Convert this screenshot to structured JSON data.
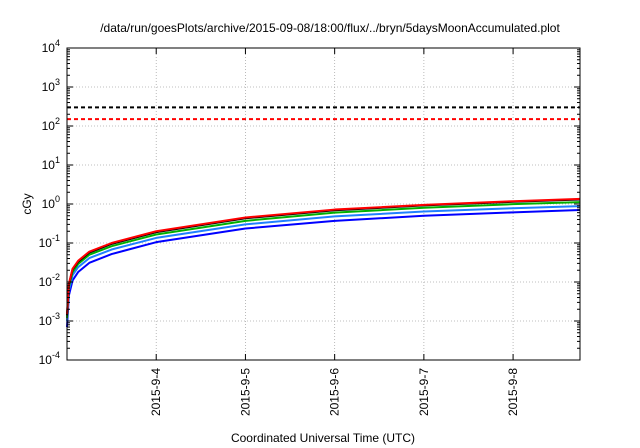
{
  "chart_data": {
    "type": "line",
    "title": "/data/run/goesPlots/archive/2015-09-08/18:00/flux/../bryn/5daysMoonAccumulated.plot",
    "xlabel": "Coordinated Universal Time (UTC)",
    "ylabel": "cGy",
    "x_scale": "time",
    "y_scale": "log",
    "xlim": [
      "2015-09-03 00:00",
      "2015-09-08 18:00"
    ],
    "ylim": [
      0.0001,
      10000
    ],
    "x_ticks": [
      "2015-9-4",
      "2015-9-5",
      "2015-9-6",
      "2015-9-7",
      "2015-9-8"
    ],
    "x_tick_values": [
      "2015-09-04",
      "2015-09-05",
      "2015-09-06",
      "2015-09-07",
      "2015-09-08"
    ],
    "y_ticks": [
      {
        "value": 0.0001,
        "base": "10",
        "exp": "-4"
      },
      {
        "value": 0.001,
        "base": "10",
        "exp": "-3"
      },
      {
        "value": 0.01,
        "base": "10",
        "exp": "-2"
      },
      {
        "value": 0.1,
        "base": "10",
        "exp": "-1"
      },
      {
        "value": 1,
        "base": "10",
        "exp": "0"
      },
      {
        "value": 10,
        "base": "10",
        "exp": "1"
      },
      {
        "value": 100,
        "base": "10",
        "exp": "2"
      },
      {
        "value": 1000,
        "base": "10",
        "exp": "3"
      },
      {
        "value": 10000,
        "base": "10",
        "exp": "4"
      }
    ],
    "grid": true,
    "legend": "none",
    "reference_lines": [
      {
        "y": 300,
        "color": "#000000",
        "style": "dashed"
      },
      {
        "y": 150,
        "color": "#ff0000",
        "style": "dashed"
      }
    ],
    "series": [
      {
        "color": "#ff0000",
        "points": [
          [
            "2015-09-03 00:00",
            0.0015
          ],
          [
            "2015-09-03 00:30",
            0.009
          ],
          [
            "2015-09-03 01:30",
            0.022
          ],
          [
            "2015-09-03 03:00",
            0.035
          ],
          [
            "2015-09-03 06:00",
            0.06
          ],
          [
            "2015-09-03 12:00",
            0.1
          ],
          [
            "2015-09-04 00:00",
            0.2
          ],
          [
            "2015-09-05 00:00",
            0.45
          ],
          [
            "2015-09-06 00:00",
            0.72
          ],
          [
            "2015-09-07 00:00",
            0.95
          ],
          [
            "2015-09-08 00:00",
            1.18
          ],
          [
            "2015-09-08 18:00",
            1.35
          ]
        ]
      },
      {
        "color": "#000000",
        "points": [
          [
            "2015-09-03 00:00",
            0.0014
          ],
          [
            "2015-09-03 00:30",
            0.0085
          ],
          [
            "2015-09-03 01:30",
            0.021
          ],
          [
            "2015-09-03 03:00",
            0.033
          ],
          [
            "2015-09-03 06:00",
            0.057
          ],
          [
            "2015-09-03 12:00",
            0.095
          ],
          [
            "2015-09-04 00:00",
            0.19
          ],
          [
            "2015-09-05 00:00",
            0.43
          ],
          [
            "2015-09-06 00:00",
            0.69
          ],
          [
            "2015-09-07 00:00",
            0.92
          ],
          [
            "2015-09-08 00:00",
            1.14
          ],
          [
            "2015-09-08 18:00",
            1.3
          ]
        ]
      },
      {
        "color": "#00b000",
        "points": [
          [
            "2015-09-03 00:00",
            0.0012
          ],
          [
            "2015-09-03 00:30",
            0.0075
          ],
          [
            "2015-09-03 01:30",
            0.018
          ],
          [
            "2015-09-03 03:00",
            0.029
          ],
          [
            "2015-09-03 06:00",
            0.05
          ],
          [
            "2015-09-03 12:00",
            0.083
          ],
          [
            "2015-09-04 00:00",
            0.165
          ],
          [
            "2015-09-05 00:00",
            0.37
          ],
          [
            "2015-09-06 00:00",
            0.6
          ],
          [
            "2015-09-07 00:00",
            0.8
          ],
          [
            "2015-09-08 00:00",
            0.99
          ],
          [
            "2015-09-08 18:00",
            1.12
          ]
        ]
      },
      {
        "color": "#2080ff",
        "points": [
          [
            "2015-09-03 00:00",
            0.001
          ],
          [
            "2015-09-03 00:30",
            0.006
          ],
          [
            "2015-09-03 01:30",
            0.015
          ],
          [
            "2015-09-03 03:00",
            0.024
          ],
          [
            "2015-09-03 06:00",
            0.041
          ],
          [
            "2015-09-03 12:00",
            0.068
          ],
          [
            "2015-09-04 00:00",
            0.135
          ],
          [
            "2015-09-05 00:00",
            0.3
          ],
          [
            "2015-09-06 00:00",
            0.48
          ],
          [
            "2015-09-07 00:00",
            0.64
          ],
          [
            "2015-09-08 00:00",
            0.78
          ],
          [
            "2015-09-08 18:00",
            0.88
          ]
        ]
      },
      {
        "color": "#0000ff",
        "points": [
          [
            "2015-09-03 00:00",
            0.0007
          ],
          [
            "2015-09-03 00:30",
            0.0045
          ],
          [
            "2015-09-03 01:30",
            0.011
          ],
          [
            "2015-09-03 03:00",
            0.018
          ],
          [
            "2015-09-03 06:00",
            0.031
          ],
          [
            "2015-09-03 12:00",
            0.052
          ],
          [
            "2015-09-04 00:00",
            0.105
          ],
          [
            "2015-09-05 00:00",
            0.235
          ],
          [
            "2015-09-06 00:00",
            0.37
          ],
          [
            "2015-09-07 00:00",
            0.5
          ],
          [
            "2015-09-08 00:00",
            0.61
          ],
          [
            "2015-09-08 18:00",
            0.7
          ]
        ]
      }
    ]
  }
}
